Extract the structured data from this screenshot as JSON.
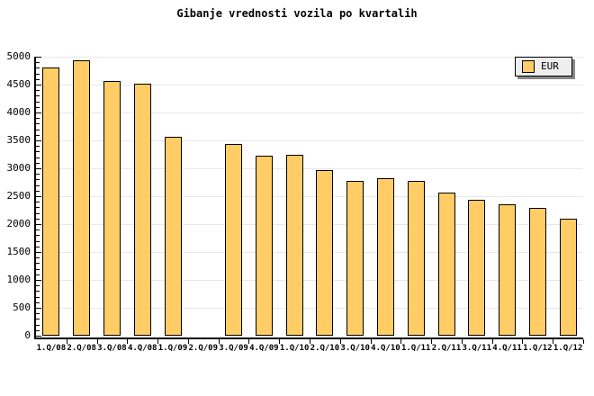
{
  "title": "Gibanje vrednosti vozila po kvartalih",
  "legend": {
    "label": "EUR"
  },
  "colors": {
    "background": "#FFFFFF",
    "bar_fill": "#FFCC66",
    "bar_border": "#000000",
    "grid": "#E8E8E8",
    "axis": "#000000",
    "legend_bg": "#EEEEEE",
    "legend_shadow": "#888888"
  },
  "chart_data": {
    "type": "bar",
    "title": "Gibanje vrednosti vozila po kvartalih",
    "categories": [
      "1.Q/08",
      "2.Q/08",
      "3.Q/08",
      "4.Q/08",
      "1.Q/09",
      "2.Q/09",
      "3.Q/09",
      "4.Q/09",
      "1.Q/10",
      "2.Q/10",
      "3.Q/10",
      "4.Q/10",
      "1.Q/11",
      "2.Q/11",
      "3.Q/11",
      "4.Q/11",
      "1.Q/12",
      "1.Q/12"
    ],
    "series": [
      {
        "name": "EUR",
        "values": [
          4800,
          4930,
          4570,
          4510,
          3570,
          null,
          3430,
          3230,
          3240,
          2970,
          2770,
          2830,
          2770,
          2570,
          2430,
          2360,
          2290,
          2100
        ]
      }
    ],
    "xlabel": "",
    "ylabel": "",
    "ylim": [
      0,
      5000
    ],
    "y_major_step": 500,
    "y_minor_step": 100,
    "grid": true,
    "legend_position": "top-right"
  }
}
